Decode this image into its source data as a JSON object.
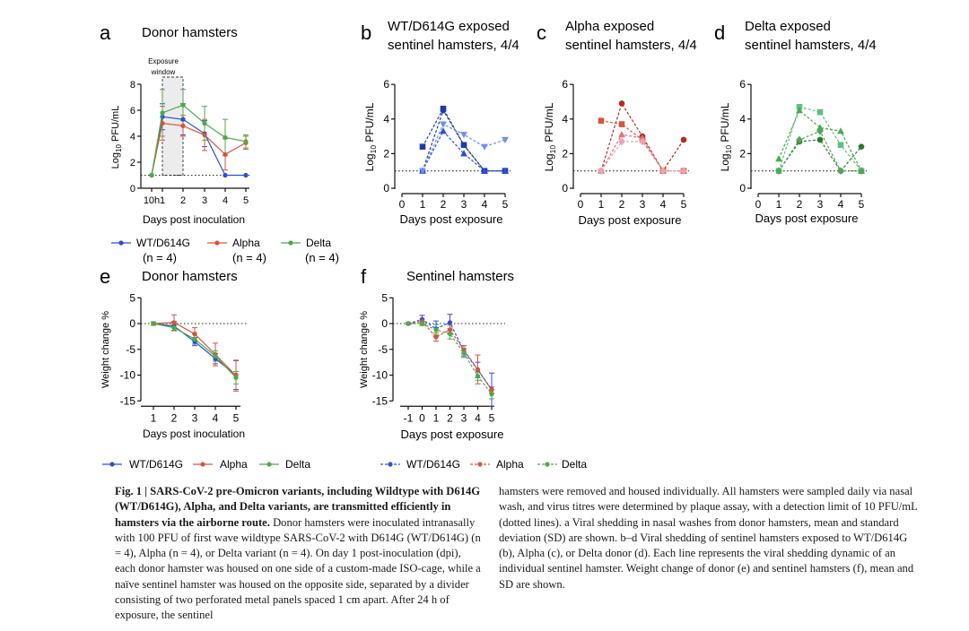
{
  "colors": {
    "wt": "#2b4fd6",
    "alpha": "#d9533c",
    "delta": "#4caa47",
    "wt_dark": "#1f3aa8",
    "alpha_dark": "#b42a1e",
    "delta_dark": "#2b7a2b"
  },
  "panel_a": {
    "letter": "a",
    "title": "Donor hamsters",
    "exposure_line1": "Exposure",
    "exposure_line2": "window",
    "ylabel_prefix": "Log",
    "ylabel_sub": "10",
    "ylabel_suffix": " PFU/mL",
    "xlabel": "Days post inoculation",
    "legend": [
      {
        "name": "WT/D614G",
        "n": "(n = 4)"
      },
      {
        "name": "Alpha",
        "n": "(n = 4)"
      },
      {
        "name": "Delta",
        "n": "(n = 4)"
      }
    ]
  },
  "panel_b": {
    "letter": "b",
    "title_line1": "WT/D614G exposed",
    "title_line2": "sentinel hamsters, 4/4",
    "ylabel_prefix": "Log",
    "ylabel_sub": "10",
    "ylabel_suffix": " PFU/mL",
    "xlabel": "Days post exposure"
  },
  "panel_c": {
    "letter": "c",
    "title_line1": "Alpha exposed",
    "title_line2": "sentinel hamsters, 4/4",
    "ylabel_prefix": "Log",
    "ylabel_sub": "10",
    "ylabel_suffix": " PFU/mL",
    "xlabel": "Days post exposure"
  },
  "panel_d": {
    "letter": "d",
    "title_line1": "Delta exposed",
    "title_line2": "sentinel hamsters, 4/4",
    "ylabel_prefix": "Log",
    "ylabel_sub": "10",
    "ylabel_suffix": " PFU/mL",
    "xlabel": "Days post exposure"
  },
  "panel_e": {
    "letter": "e",
    "title": "Donor hamsters",
    "ylabel": "Weight change %",
    "xlabel": "Days post inoculation",
    "legend": [
      "WT/D614G",
      "Alpha",
      "Delta"
    ]
  },
  "panel_f": {
    "letter": "f",
    "title": "Sentinel hamsters",
    "ylabel": "Weight change %",
    "xlabel": "Days post exposure",
    "legend": [
      "WT/D614G",
      "Alpha",
      "Delta"
    ]
  },
  "caption": {
    "fig_label": "Fig. 1 | SARS-CoV-2 pre-Omicron variants, including Wildtype with D614G (WT/D614G), Alpha, and Delta variants, are transmitted efficiently in hamsters via the airborne route.",
    "left_body": "Donor hamsters were inoculated intranasally with 100 PFU of first wave wildtype SARS-CoV-2 with D614G (WT/D614G) (n = 4), Alpha (n = 4), or Delta variant (n = 4). On day 1 post-inoculation (dpi), each donor hamster was housed on one side of a custom-made ISO-cage, while a naïve sentinel hamster was housed on the opposite side, separated by a divider consisting of two perforated metal panels spaced 1 cm apart. After 24 h of exposure, the sentinel",
    "right_body": "hamsters were removed and housed individually. All hamsters were sampled daily via nasal wash, and virus titres were determined by plaque assay, with a detection limit of 10 PFU/mL (dotted lines). a Viral shedding in nasal washes from donor hamsters, mean and standard deviation (SD) are shown. b–d Viral shedding of sentinel hamsters exposed to WT/D614G (b), Alpha (c), or Delta donor (d). Each line represents the viral shedding dynamic of an individual sentinel hamster. Weight change of donor (e) and sentinel hamsters (f), mean and SD are shown."
  },
  "chart_data": [
    {
      "panel": "a",
      "type": "line",
      "x_tick_labels": [
        "10h",
        "1",
        "2",
        "3",
        "4",
        "5"
      ],
      "ylim": [
        0,
        8
      ],
      "y_ticks": [
        0,
        2,
        4,
        6,
        8
      ],
      "reference_line": 1,
      "exposure_window": [
        1,
        2
      ],
      "series": [
        {
          "name": "WT/D614G",
          "color": "wt",
          "x": [
            0,
            1,
            2,
            3,
            4,
            5
          ],
          "y": [
            1.0,
            5.5,
            5.3,
            4.2,
            1.0,
            1.0
          ],
          "sd": [
            0,
            1.0,
            1.2,
            1.0,
            0,
            0
          ]
        },
        {
          "name": "Alpha",
          "color": "alpha",
          "x": [
            0,
            1,
            2,
            3,
            4,
            5
          ],
          "y": [
            1.0,
            5.0,
            4.8,
            4.1,
            2.6,
            3.5
          ],
          "sd": [
            0,
            1.3,
            0.8,
            1.2,
            1.2,
            0.5
          ]
        },
        {
          "name": "Delta",
          "color": "delta",
          "x": [
            0,
            1,
            2,
            3,
            4,
            5
          ],
          "y": [
            1.0,
            5.8,
            6.4,
            5.0,
            3.9,
            3.6
          ],
          "sd": [
            0,
            1.8,
            1.2,
            1.3,
            1.4,
            0.5
          ]
        }
      ]
    },
    {
      "panel": "b",
      "type": "line",
      "xlim": [
        0,
        5
      ],
      "ylim": [
        0,
        6
      ],
      "y_ticks": [
        0,
        2,
        4,
        6
      ],
      "reference_line": 1,
      "series": [
        {
          "marker": "square",
          "color": "wt_dark",
          "x": [
            1,
            2,
            3,
            4,
            5
          ],
          "y": [
            2.4,
            4.6,
            2.5,
            1.0,
            1.0
          ]
        },
        {
          "marker": "circle",
          "color": "wt_dark",
          "x": [
            1,
            2,
            3,
            4,
            5
          ],
          "y": [
            1.0,
            4.5,
            2.5,
            1.0,
            1.0
          ]
        },
        {
          "marker": "triangle",
          "color": "wt",
          "x": [
            1,
            2,
            3,
            4,
            5
          ],
          "y": [
            1.0,
            3.3,
            2.0,
            1.0,
            1.0
          ]
        },
        {
          "marker": "triangle-down",
          "color": "wt_light",
          "x": [
            1,
            2,
            3,
            4,
            5
          ],
          "y": [
            1.0,
            3.7,
            3.1,
            2.4,
            2.8
          ]
        }
      ]
    },
    {
      "panel": "c",
      "type": "line",
      "xlim": [
        0,
        5
      ],
      "ylim": [
        0,
        6
      ],
      "y_ticks": [
        0,
        2,
        4,
        6
      ],
      "reference_line": 1,
      "series": [
        {
          "marker": "circle",
          "color": "alpha_dark",
          "x": [
            1,
            2,
            3,
            4,
            5
          ],
          "y": [
            1.0,
            4.9,
            3.0,
            1.0,
            2.8
          ]
        },
        {
          "marker": "square",
          "color": "alpha",
          "x": [
            1,
            2,
            3,
            4,
            5
          ],
          "y": [
            3.9,
            3.7,
            2.8,
            1.0,
            1.0
          ]
        },
        {
          "marker": "triangle",
          "color": "alpha_mid",
          "x": [
            1,
            2,
            3,
            4,
            5
          ],
          "y": [
            1.0,
            3.1,
            2.9,
            1.0,
            1.0
          ]
        },
        {
          "marker": "diamond",
          "color": "alpha_light",
          "x": [
            1,
            2,
            3,
            4,
            5
          ],
          "y": [
            1.0,
            2.7,
            2.7,
            1.0,
            1.0
          ]
        }
      ]
    },
    {
      "panel": "d",
      "type": "line",
      "xlim": [
        0,
        5
      ],
      "ylim": [
        0,
        6
      ],
      "y_ticks": [
        0,
        2,
        4,
        6
      ],
      "reference_line": 1,
      "series": [
        {
          "marker": "circle",
          "color": "delta_dark",
          "x": [
            1,
            2,
            3,
            4,
            5
          ],
          "y": [
            1.0,
            2.7,
            2.8,
            1.0,
            2.4
          ]
        },
        {
          "marker": "square",
          "color": "delta_light",
          "x": [
            1,
            2,
            3,
            4,
            5
          ],
          "y": [
            1.0,
            4.7,
            4.4,
            2.5,
            1.0
          ]
        },
        {
          "marker": "triangle",
          "color": "delta",
          "x": [
            1,
            2,
            3,
            4,
            5
          ],
          "y": [
            1.7,
            4.5,
            3.5,
            3.3,
            1.0
          ]
        },
        {
          "marker": "diamond",
          "color": "delta_mid",
          "x": [
            1,
            2,
            3,
            4,
            5
          ],
          "y": [
            1.0,
            2.8,
            3.3,
            1.0,
            1.0
          ]
        }
      ]
    },
    {
      "panel": "e",
      "type": "line",
      "xlim": [
        0.5,
        5.2
      ],
      "ylim": [
        -15,
        5
      ],
      "y_ticks": [
        5,
        0,
        -5,
        -10,
        -15
      ],
      "x_ticks": [
        1,
        2,
        3,
        4,
        5
      ],
      "reference_line": 0,
      "series": [
        {
          "name": "WT/D614G",
          "color": "wt",
          "x": [
            1,
            2,
            3,
            4,
            5
          ],
          "y": [
            0.0,
            -0.5,
            -3.5,
            -6.8,
            -10.0
          ],
          "sd": [
            0.3,
            0.9,
            0.8,
            1.0,
            2.8
          ]
        },
        {
          "name": "Alpha",
          "color": "alpha",
          "x": [
            1,
            2,
            3,
            4,
            5
          ],
          "y": [
            0.0,
            0.2,
            -2.0,
            -6.0,
            -10.1
          ],
          "sd": [
            0.3,
            1.5,
            1.2,
            2.2,
            3.0
          ]
        },
        {
          "name": "Delta",
          "color": "delta",
          "x": [
            1,
            2,
            3,
            4,
            5
          ],
          "y": [
            0.0,
            -0.8,
            -3.0,
            -6.3,
            -10.5
          ],
          "sd": [
            0.3,
            0.6,
            1.0,
            1.0,
            1.2
          ]
        }
      ]
    },
    {
      "panel": "f",
      "type": "line",
      "xlim": [
        -1.5,
        5.3
      ],
      "ylim": [
        -15,
        5
      ],
      "y_ticks": [
        5,
        0,
        -5,
        -10,
        -15
      ],
      "x_ticks": [
        -1,
        0,
        1,
        2,
        3,
        4,
        5
      ],
      "reference_line": 0,
      "series": [
        {
          "name": "WT/D614G",
          "color": "wt",
          "x": [
            -1,
            0,
            1,
            2,
            3,
            4,
            5
          ],
          "y": [
            0.0,
            0.8,
            -1.0,
            0.2,
            -5.3,
            -9.0,
            -12.8
          ],
          "sd": [
            0.2,
            0.8,
            1.5,
            1.6,
            1.0,
            1.5,
            3.2
          ]
        },
        {
          "name": "Alpha",
          "color": "alpha",
          "x": [
            -1,
            0,
            1,
            2,
            3,
            4,
            5
          ],
          "y": [
            0.0,
            0.4,
            -2.6,
            -1.2,
            -5.1,
            -8.9,
            -12.9
          ],
          "sd": [
            0.2,
            0.5,
            0.8,
            0.9,
            0.8,
            2.8,
            0.6
          ]
        },
        {
          "name": "Delta",
          "color": "delta",
          "x": [
            -1,
            0,
            1,
            2,
            3,
            4,
            5
          ],
          "y": [
            0.0,
            0.0,
            -1.2,
            -2.0,
            -5.7,
            -10.2,
            -13.7
          ],
          "sd": [
            0.2,
            0.4,
            1.0,
            1.0,
            0.9,
            0.8,
            0.9
          ]
        }
      ]
    }
  ]
}
